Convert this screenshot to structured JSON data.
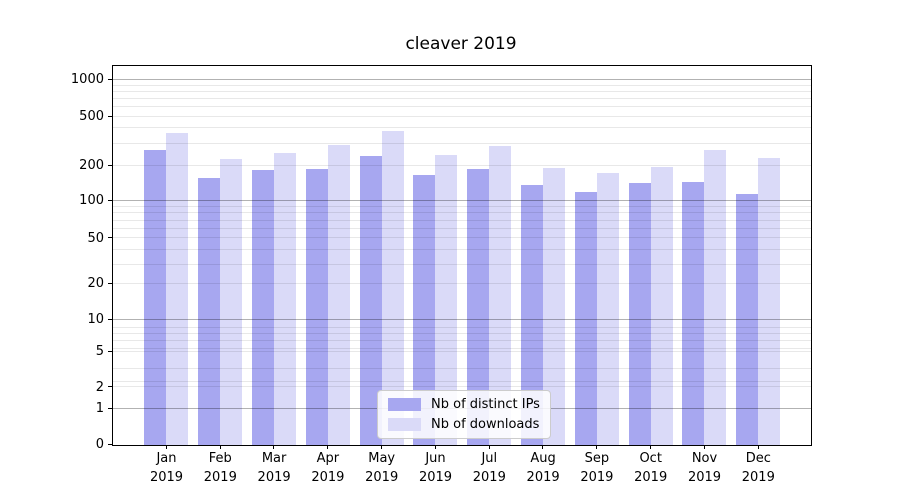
{
  "chart_data": {
    "type": "bar",
    "title": "cleaver 2019",
    "categories": [
      "Jan 2019",
      "Feb 2019",
      "Mar 2019",
      "Apr 2019",
      "May 2019",
      "Jun 2019",
      "Jul 2019",
      "Aug 2019",
      "Sep 2019",
      "Oct 2019",
      "Nov 2019",
      "Dec 2019"
    ],
    "series": [
      {
        "name": "Nb of distinct IPs",
        "color": "#a7a7f0",
        "values": [
          265,
          156,
          180,
          184,
          235,
          165,
          185,
          137,
          120,
          140,
          143,
          114
        ]
      },
      {
        "name": "Nb of downloads",
        "color": "#dadaf8",
        "values": [
          363,
          224,
          248,
          288,
          375,
          240,
          282,
          187,
          171,
          190,
          265,
          225
        ]
      }
    ],
    "xlabel": "",
    "ylabel": "",
    "yscale": "log-like (asinh), linear below 1",
    "yticks": [
      0,
      1,
      2,
      5,
      10,
      20,
      50,
      100,
      200,
      500,
      1000
    ],
    "ylim": [
      0,
      1290
    ],
    "grid": true,
    "grid_major_color": "#b3b3b3",
    "grid_minor_color": "#e8e8e8",
    "legend_position": "lower center"
  }
}
